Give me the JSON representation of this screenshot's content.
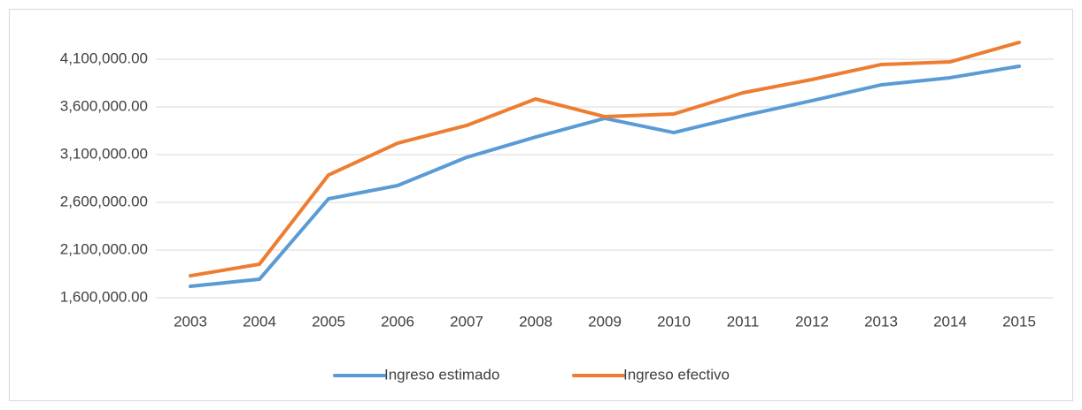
{
  "chart_data": {
    "type": "line",
    "categories": [
      "2003",
      "2004",
      "2005",
      "2006",
      "2007",
      "2008",
      "2009",
      "2010",
      "2011",
      "2012",
      "2013",
      "2014",
      "2015"
    ],
    "series": [
      {
        "name": "Ingreso estimado",
        "color": "#5b9bd5",
        "values": [
          1720000,
          1794000,
          2637000,
          2776000,
          3072000,
          3285000,
          3480000,
          3331000,
          3507000,
          3665000,
          3831000,
          3906000,
          4026000
        ]
      },
      {
        "name": "Ingreso efectivo",
        "color": "#ed7d31",
        "values": [
          1831000,
          1952000,
          2887000,
          3220000,
          3406000,
          3683000,
          3498000,
          3526000,
          3748000,
          3887000,
          4044000,
          4072000,
          4276000
        ]
      }
    ],
    "ylim": [
      1600000,
      4400000
    ],
    "yticks": [
      {
        "value": 1600000,
        "label": "1,600,000.00"
      },
      {
        "value": 2100000,
        "label": "2,100,000.00"
      },
      {
        "value": 2600000,
        "label": "2,600,000.00"
      },
      {
        "value": 3100000,
        "label": "3,100,000.00"
      },
      {
        "value": 3600000,
        "label": "3,600,000.00"
      },
      {
        "value": 4100000,
        "label": "4,100,000.00"
      }
    ],
    "grid": true,
    "legend": "bottom"
  }
}
